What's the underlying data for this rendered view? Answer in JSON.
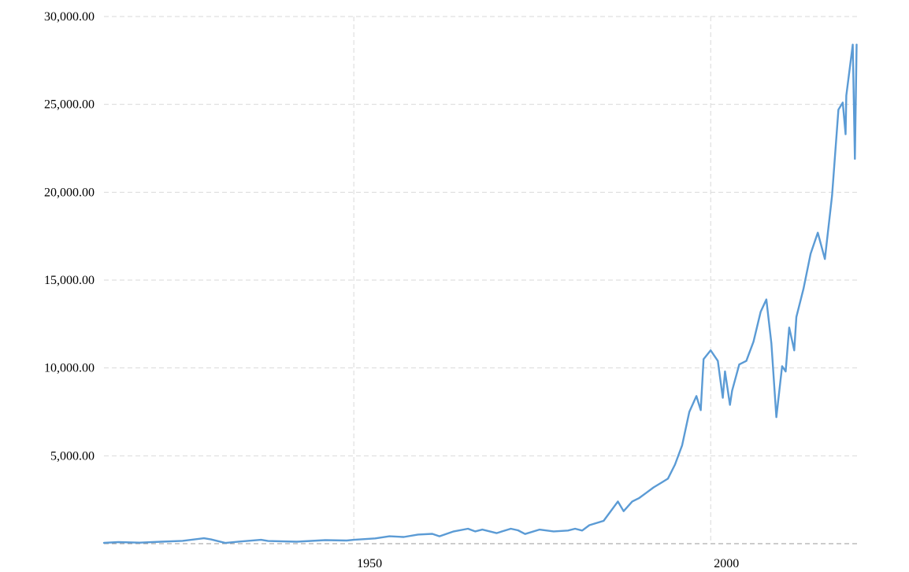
{
  "chart_data": {
    "type": "line",
    "title": "",
    "xlabel": "",
    "ylabel": "",
    "xlim": [
      1915,
      2020.5
    ],
    "ylim": [
      0,
      30000
    ],
    "x_ticks": [
      {
        "value": 1950,
        "label": "1950"
      },
      {
        "value": 2000,
        "label": "2000"
      }
    ],
    "y_ticks": [
      {
        "value": 5000,
        "label": "5,000.00"
      },
      {
        "value": 10000,
        "label": "10,000.00"
      },
      {
        "value": 15000,
        "label": "15,000.00"
      },
      {
        "value": 20000,
        "label": "20,000.00"
      },
      {
        "value": 25000,
        "label": "25,000.00"
      },
      {
        "value": 30000,
        "label": "30,000.00"
      }
    ],
    "grid": true,
    "legend": "none",
    "line_color": "#5b9bd5",
    "series": [
      {
        "points": [
          [
            1915,
            50
          ],
          [
            1917,
            90
          ],
          [
            1920,
            60
          ],
          [
            1923,
            110
          ],
          [
            1926,
            160
          ],
          [
            1929,
            310
          ],
          [
            1930,
            240
          ],
          [
            1932,
            40
          ],
          [
            1934,
            120
          ],
          [
            1937,
            220
          ],
          [
            1938,
            150
          ],
          [
            1942,
            110
          ],
          [
            1946,
            200
          ],
          [
            1949,
            180
          ],
          [
            1950,
            220
          ],
          [
            1953,
            300
          ],
          [
            1955,
            420
          ],
          [
            1957,
            380
          ],
          [
            1959,
            520
          ],
          [
            1961,
            560
          ],
          [
            1962,
            420
          ],
          [
            1964,
            700
          ],
          [
            1966,
            850
          ],
          [
            1967,
            700
          ],
          [
            1968,
            800
          ],
          [
            1970,
            600
          ],
          [
            1972,
            850
          ],
          [
            1973,
            760
          ],
          [
            1974,
            550
          ],
          [
            1976,
            800
          ],
          [
            1978,
            700
          ],
          [
            1980,
            750
          ],
          [
            1981,
            850
          ],
          [
            1982,
            750
          ],
          [
            1983,
            1050
          ],
          [
            1985,
            1300
          ],
          [
            1987,
            2400
          ],
          [
            1987.8,
            1850
          ],
          [
            1989,
            2400
          ],
          [
            1990,
            2600
          ],
          [
            1991,
            2900
          ],
          [
            1992,
            3200
          ],
          [
            1993,
            3450
          ],
          [
            1994,
            3700
          ],
          [
            1995,
            4500
          ],
          [
            1996,
            5600
          ],
          [
            1997,
            7500
          ],
          [
            1998,
            8400
          ],
          [
            1998.6,
            7600
          ],
          [
            1999,
            10500
          ],
          [
            2000,
            11000
          ],
          [
            2001,
            10400
          ],
          [
            2001.7,
            8300
          ],
          [
            2002,
            9800
          ],
          [
            2002.7,
            7900
          ],
          [
            2003,
            8700
          ],
          [
            2004,
            10200
          ],
          [
            2005,
            10400
          ],
          [
            2006,
            11500
          ],
          [
            2007,
            13200
          ],
          [
            2007.8,
            13900
          ],
          [
            2008.5,
            11400
          ],
          [
            2009.2,
            7200
          ],
          [
            2010,
            10100
          ],
          [
            2010.5,
            9800
          ],
          [
            2011,
            12300
          ],
          [
            2011.7,
            11000
          ],
          [
            2012,
            12900
          ],
          [
            2013,
            14500
          ],
          [
            2014,
            16500
          ],
          [
            2015,
            17700
          ],
          [
            2016,
            16200
          ],
          [
            2017,
            19800
          ],
          [
            2017.9,
            24700
          ],
          [
            2018.5,
            25100
          ],
          [
            2018.9,
            23300
          ],
          [
            2019,
            25500
          ],
          [
            2019.9,
            28400
          ],
          [
            2020.2,
            21900
          ],
          [
            2020.45,
            28400
          ]
        ]
      }
    ]
  }
}
